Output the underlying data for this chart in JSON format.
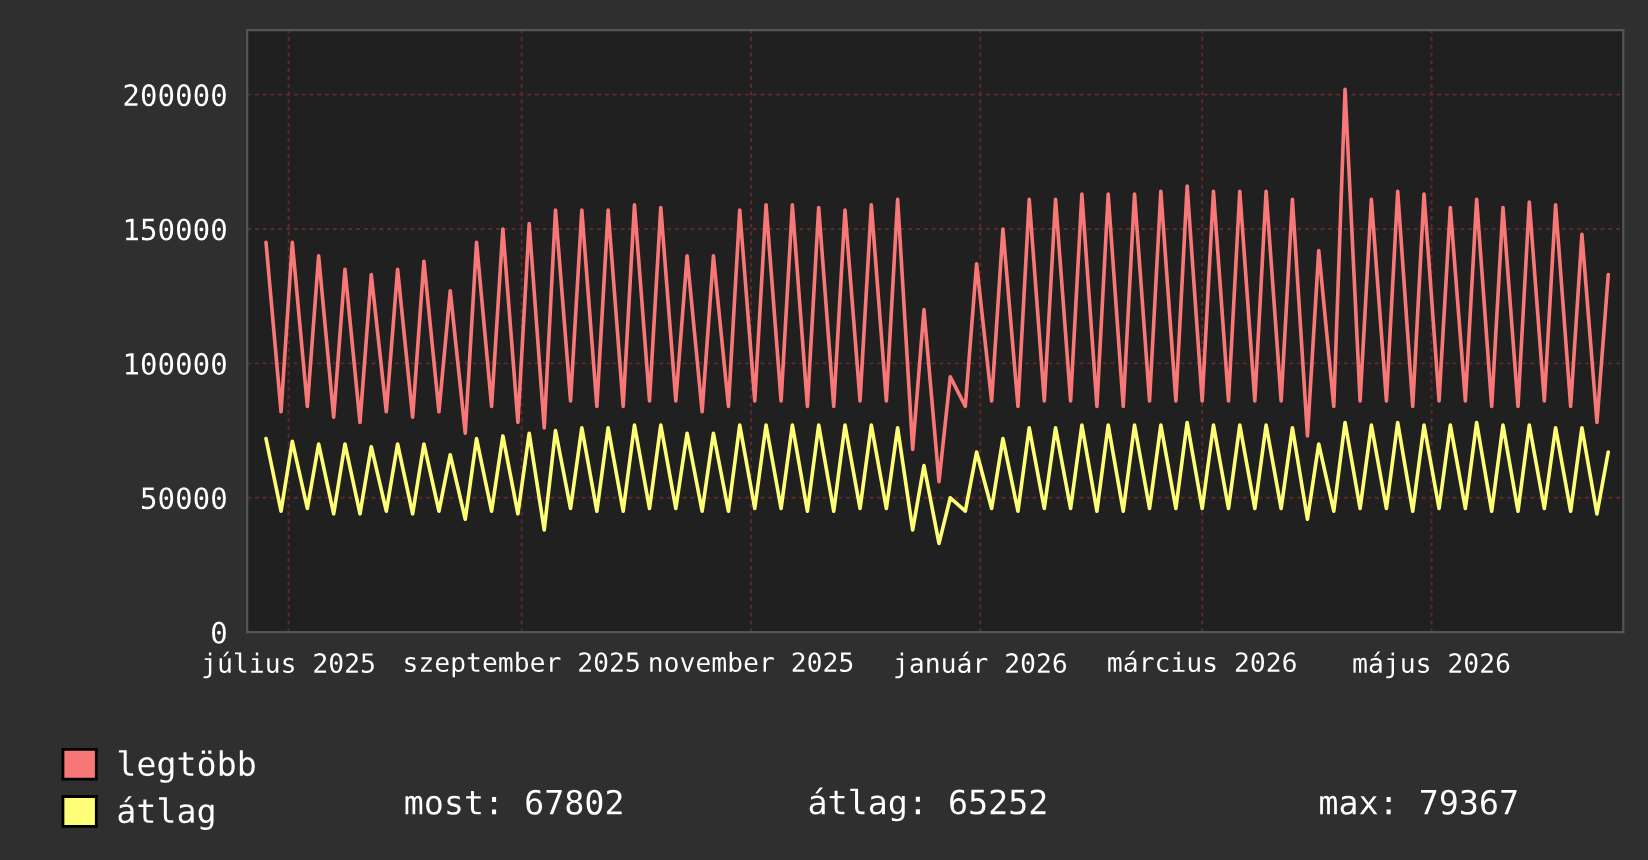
{
  "chart_data": {
    "type": "line",
    "x": [
      "2025-06-25",
      "2025-06-29",
      "2025-07-02",
      "2025-07-06",
      "2025-07-09",
      "2025-07-13",
      "2025-07-16",
      "2025-07-20",
      "2025-07-23",
      "2025-07-27",
      "2025-07-30",
      "2025-08-03",
      "2025-08-06",
      "2025-08-10",
      "2025-08-13",
      "2025-08-17",
      "2025-08-20",
      "2025-08-24",
      "2025-08-27",
      "2025-08-31",
      "2025-09-03",
      "2025-09-07",
      "2025-09-10",
      "2025-09-14",
      "2025-09-17",
      "2025-09-21",
      "2025-09-24",
      "2025-09-28",
      "2025-10-01",
      "2025-10-05",
      "2025-10-08",
      "2025-10-12",
      "2025-10-15",
      "2025-10-19",
      "2025-10-22",
      "2025-10-26",
      "2025-10-29",
      "2025-11-02",
      "2025-11-05",
      "2025-11-09",
      "2025-11-12",
      "2025-11-16",
      "2025-11-19",
      "2025-11-23",
      "2025-11-26",
      "2025-11-30",
      "2025-12-03",
      "2025-12-07",
      "2025-12-10",
      "2025-12-14",
      "2025-12-17",
      "2025-12-21",
      "2025-12-24",
      "2025-12-28",
      "2025-12-31",
      "2026-01-04",
      "2026-01-07",
      "2026-01-11",
      "2026-01-14",
      "2026-01-18",
      "2026-01-21",
      "2026-01-25",
      "2026-01-28",
      "2026-02-01",
      "2026-02-04",
      "2026-02-08",
      "2026-02-11",
      "2026-02-15",
      "2026-02-18",
      "2026-02-22",
      "2026-02-25",
      "2026-03-01",
      "2026-03-04",
      "2026-03-08",
      "2026-03-11",
      "2026-03-15",
      "2026-03-18",
      "2026-03-22",
      "2026-03-25",
      "2026-03-29",
      "2026-04-01",
      "2026-04-05",
      "2026-04-08",
      "2026-04-12",
      "2026-04-15",
      "2026-04-19",
      "2026-04-22",
      "2026-04-26",
      "2026-04-29",
      "2026-05-03",
      "2026-05-06",
      "2026-05-10",
      "2026-05-13",
      "2026-05-17",
      "2026-05-20",
      "2026-05-24",
      "2026-05-27",
      "2026-05-31",
      "2026-06-03",
      "2026-06-07",
      "2026-06-10",
      "2026-06-14",
      "2026-06-17"
    ],
    "series": [
      {
        "name": "legtöbb",
        "color": "#f87878",
        "values": [
          145000,
          82000,
          145000,
          84000,
          140000,
          80000,
          135000,
          78000,
          133000,
          82000,
          135000,
          80000,
          138000,
          82000,
          127000,
          74000,
          145000,
          84000,
          150000,
          78000,
          152000,
          76000,
          157000,
          86000,
          157000,
          84000,
          157000,
          84000,
          159000,
          86000,
          158000,
          86000,
          140000,
          82000,
          140000,
          84000,
          157000,
          86000,
          159000,
          86000,
          159000,
          84000,
          158000,
          84000,
          157000,
          86000,
          159000,
          86000,
          161000,
          68000,
          120000,
          56000,
          95000,
          84000,
          137000,
          86000,
          150000,
          84000,
          161000,
          86000,
          161000,
          86000,
          163000,
          84000,
          163000,
          84000,
          163000,
          86000,
          164000,
          86000,
          166000,
          86000,
          164000,
          86000,
          164000,
          86000,
          164000,
          86000,
          161000,
          73000,
          142000,
          84000,
          202000,
          86000,
          161000,
          86000,
          164000,
          84000,
          163000,
          86000,
          158000,
          86000,
          161000,
          84000,
          158000,
          84000,
          160000,
          86000,
          159000,
          84000,
          148000,
          78000,
          133000
        ]
      },
      {
        "name": "átlag",
        "color": "#ffff77",
        "values": [
          72000,
          45000,
          71000,
          46000,
          70000,
          44000,
          70000,
          44000,
          69000,
          45000,
          70000,
          44000,
          70000,
          45000,
          66000,
          42000,
          72000,
          45000,
          73000,
          44000,
          74000,
          38000,
          75000,
          46000,
          76000,
          45000,
          76000,
          45000,
          77000,
          46000,
          77000,
          46000,
          74000,
          45000,
          74000,
          45000,
          77000,
          46000,
          77000,
          46000,
          77000,
          45000,
          77000,
          45000,
          77000,
          46000,
          77000,
          46000,
          76000,
          38000,
          62000,
          33000,
          50000,
          45000,
          67000,
          46000,
          72000,
          45000,
          76000,
          46000,
          76000,
          46000,
          77000,
          45000,
          77000,
          45000,
          77000,
          46000,
          77000,
          46000,
          78000,
          46000,
          77000,
          46000,
          77000,
          46000,
          77000,
          46000,
          76000,
          42000,
          70000,
          45000,
          78000,
          46000,
          77000,
          46000,
          78000,
          45000,
          77000,
          46000,
          77000,
          46000,
          78000,
          45000,
          77000,
          45000,
          77000,
          46000,
          76000,
          45000,
          76000,
          44000,
          67000
        ]
      }
    ],
    "xlim": [
      "2025-06-20",
      "2026-06-21"
    ],
    "xticks": [
      {
        "value": "2025-07-01",
        "label": "július 2025"
      },
      {
        "value": "2025-09-01",
        "label": "szeptember 2025"
      },
      {
        "value": "2025-11-01",
        "label": "november 2025"
      },
      {
        "value": "2026-01-01",
        "label": "január 2026"
      },
      {
        "value": "2026-03-01",
        "label": "március 2026"
      },
      {
        "value": "2026-05-01",
        "label": "május 2026"
      }
    ],
    "ylim": [
      0,
      224000
    ],
    "yticks": [
      0,
      50000,
      100000,
      150000,
      200000
    ],
    "grid": true,
    "legend": "bottom left",
    "annotations": [
      "most: 67802",
      "átlag: 65252",
      "max: 79367"
    ]
  }
}
